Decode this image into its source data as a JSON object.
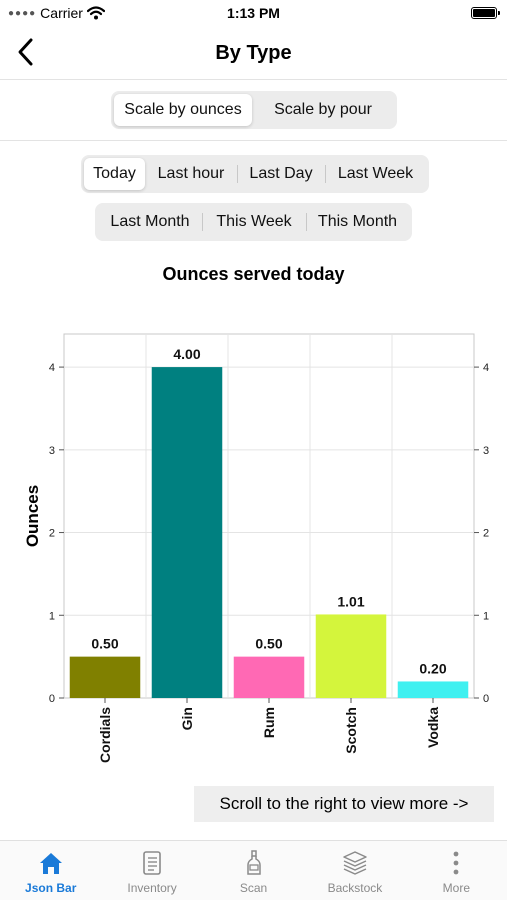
{
  "status": {
    "carrier": "Carrier",
    "time": "1:13 PM"
  },
  "nav": {
    "title": "By Type"
  },
  "scale_control": {
    "options": [
      "Scale by ounces",
      "Scale by pour"
    ],
    "selected": 0
  },
  "range_control": {
    "row1": [
      "Today",
      "Last hour",
      "Last Day",
      "Last Week"
    ],
    "row2": [
      "Last Month",
      "This Week",
      "This Month"
    ],
    "selected": "Today"
  },
  "chart_data": {
    "type": "bar",
    "title": "Ounces served today",
    "ylabel": "Ounces",
    "xlabel": "",
    "categories": [
      "Cordials",
      "Gin",
      "Rum",
      "Scotch",
      "Vodka"
    ],
    "values": [
      0.5,
      4.0,
      0.5,
      1.01,
      0.2
    ],
    "value_labels": [
      "0.50",
      "4.00",
      "0.50",
      "1.01",
      "0.20"
    ],
    "colors": [
      "#808000",
      "#008080",
      "#ff69b4",
      "#d4f53c",
      "#40f0f0"
    ],
    "ylim": [
      0,
      4.4
    ],
    "yticks": [
      0,
      1,
      2,
      3,
      4
    ],
    "grid": true,
    "right_axis": true
  },
  "scroll_hint": "Scroll to the right to view more ->",
  "tabs": [
    {
      "label": "Json Bar",
      "icon": "home-icon",
      "active": true
    },
    {
      "label": "Inventory",
      "icon": "document-icon",
      "active": false
    },
    {
      "label": "Scan",
      "icon": "bottle-icon",
      "active": false
    },
    {
      "label": "Backstock",
      "icon": "layers-icon",
      "active": false
    },
    {
      "label": "More",
      "icon": "more-vertical-icon",
      "active": false
    }
  ]
}
